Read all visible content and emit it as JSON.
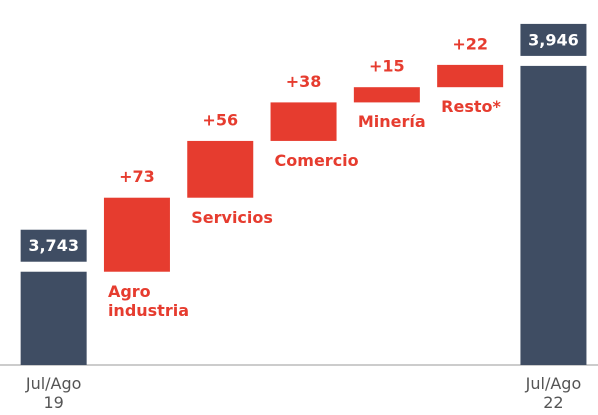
{
  "chart_data": {
    "type": "waterfall",
    "categories": [
      "Jul/Ago 19",
      "Agro industria",
      "Servicios",
      "Comercio",
      "Minería",
      "Resto*",
      "Jul/Ago 22"
    ],
    "values": [
      3743,
      73,
      56,
      38,
      15,
      22,
      3946
    ],
    "value_labels": [
      "3,743",
      "+73",
      "+56",
      "+38",
      "+15",
      "+22",
      "3,946"
    ],
    "measures": [
      "absolute",
      "relative",
      "relative",
      "relative",
      "relative",
      "relative",
      "absolute"
    ],
    "total_color": "#3f4d63",
    "change_color": "#e63c2f",
    "ylim": [
      3651,
      4011
    ]
  }
}
